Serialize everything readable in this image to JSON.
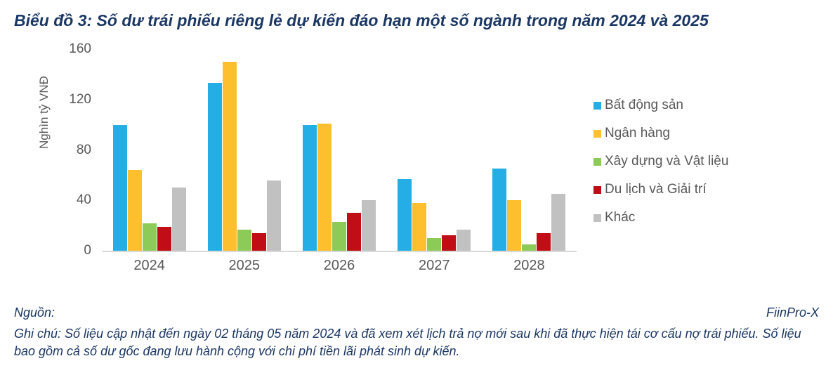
{
  "title": "Biểu đồ 3: Số dư trái phiếu riêng lẻ dự kiến đáo hạn một số ngành trong năm 2024 và 2025",
  "chart_data": {
    "type": "bar",
    "title": "Biểu đồ 3: Số dư trái phiếu riêng lẻ dự kiến đáo hạn một số ngành trong năm 2024 và 2025",
    "xlabel": "",
    "ylabel": "Nghìn tỷ VNĐ",
    "ylim": [
      0,
      160
    ],
    "yticks": [
      0,
      40,
      80,
      120,
      160
    ],
    "grid": false,
    "legend_position": "right",
    "categories": [
      "2024",
      "2025",
      "2026",
      "2027",
      "2028"
    ],
    "series": [
      {
        "name": "Bất động sản",
        "color": "#25AEE5",
        "values": [
          100,
          133,
          100,
          57,
          65
        ]
      },
      {
        "name": "Ngân hàng",
        "color": "#FDBF2D",
        "values": [
          64,
          150,
          101,
          38,
          40
        ]
      },
      {
        "name": "Xây dựng và Vật liệu",
        "color": "#8DCB59",
        "values": [
          22,
          17,
          23,
          10,
          5
        ]
      },
      {
        "name": "Du lịch và Giải trí",
        "color": "#C00D16",
        "values": [
          19,
          14,
          30,
          12,
          14
        ]
      },
      {
        "name": "Khác",
        "color": "#C1C1C1",
        "values": [
          50,
          56,
          40,
          17,
          45
        ]
      }
    ]
  },
  "footer": {
    "source_label": "Nguồn:",
    "source_value": "FiinPro-X",
    "note": "Ghi chú: Số liệu cập nhật đến ngày 02 tháng 05 năm 2024 và đã xem xét lịch trả nợ mới sau khi đã thực hiện tái cơ cấu nợ trái phiếu. Số liệu bao gồm cả số dư gốc đang lưu hành cộng với chi phí tiền lãi phát sinh dự kiến."
  },
  "colors": {
    "title_text": "#1B3764",
    "footer_text": "#1B3764",
    "axis_text": "#595959",
    "baseline": "#D9D9D9"
  }
}
